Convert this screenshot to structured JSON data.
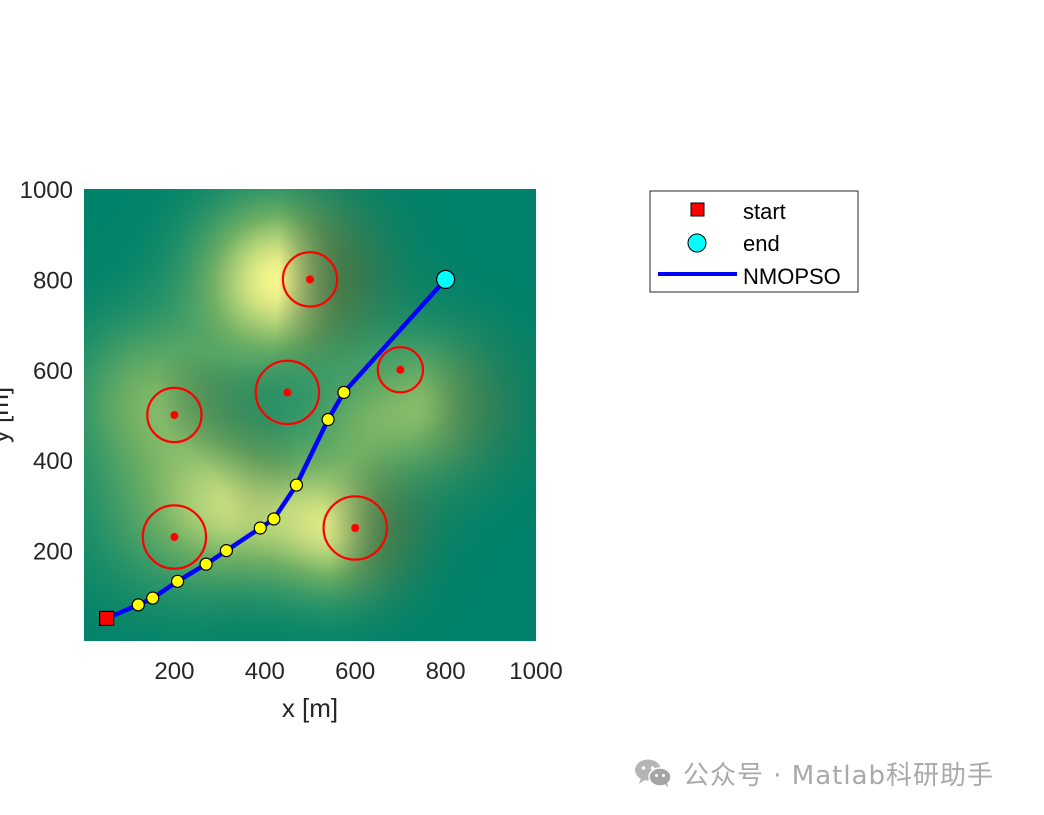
{
  "chart_data": {
    "type": "scatter",
    "title": "",
    "xlabel": "x [m]",
    "ylabel": "y [m]",
    "xlim": [
      0,
      1000
    ],
    "ylim": [
      0,
      1000
    ],
    "xticks": [
      200,
      400,
      600,
      800,
      1000
    ],
    "yticks": [
      200,
      400,
      600,
      800,
      1000
    ],
    "grid": false,
    "legend_position": "outside-right",
    "colors": {
      "terrain_base": "#00826a",
      "terrain_ridge": "#1f4a34",
      "terrain_peak": "#f5f58c",
      "threat": "#ff0000",
      "path": "#0000ff",
      "waypoint": "#ffff00",
      "start": "#ff0000",
      "end": "#00ffff"
    },
    "start": {
      "name": "start",
      "x": 50,
      "y": 50
    },
    "end": {
      "name": "end",
      "x": 800,
      "y": 800
    },
    "threats": [
      {
        "x": 500,
        "y": 800,
        "r": 60
      },
      {
        "x": 700,
        "y": 600,
        "r": 50
      },
      {
        "x": 200,
        "y": 500,
        "r": 60
      },
      {
        "x": 450,
        "y": 550,
        "r": 70
      },
      {
        "x": 200,
        "y": 230,
        "r": 70
      },
      {
        "x": 600,
        "y": 250,
        "r": 70
      }
    ],
    "series": [
      {
        "name": "NMOPSO",
        "x": [
          50,
          120,
          152,
          207,
          270,
          315,
          390,
          420,
          470,
          540,
          575,
          800
        ],
        "y": [
          50,
          80,
          95,
          132,
          170,
          200,
          250,
          270,
          345,
          490,
          550,
          800
        ]
      }
    ],
    "waypoints": {
      "x": [
        120,
        152,
        207,
        270,
        315,
        390,
        420,
        470,
        540,
        575
      ],
      "y": [
        80,
        95,
        132,
        170,
        200,
        250,
        270,
        345,
        490,
        550
      ]
    },
    "terrain_peaks": [
      {
        "x": 430,
        "y": 800,
        "h": 1.0,
        "s": 120
      },
      {
        "x": 760,
        "y": 520,
        "h": 0.55,
        "s": 110
      },
      {
        "x": 150,
        "y": 540,
        "h": 0.5,
        "s": 120
      },
      {
        "x": 340,
        "y": 300,
        "h": 0.6,
        "s": 110
      },
      {
        "x": 560,
        "y": 250,
        "h": 0.8,
        "s": 100
      },
      {
        "x": 180,
        "y": 280,
        "h": 0.3,
        "s": 130
      },
      {
        "x": 590,
        "y": 480,
        "h": 0.25,
        "s": 80
      }
    ]
  },
  "legend": {
    "items": [
      {
        "label": "start"
      },
      {
        "label": "end"
      },
      {
        "label": "NMOPSO"
      }
    ]
  },
  "watermark": {
    "text": "公众号 · Matlab科研助手"
  }
}
